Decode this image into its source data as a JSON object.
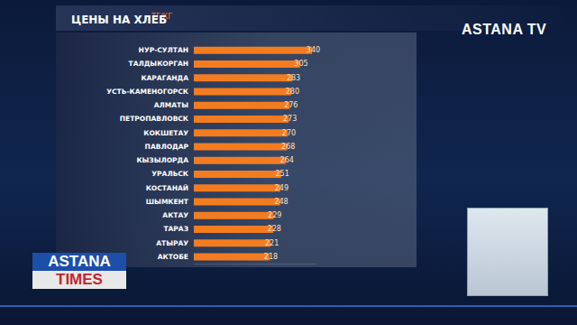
{
  "chart_data": {
    "type": "bar",
    "orientation": "horizontal",
    "title": "ЦЕНЫ НА ХЛЕБ",
    "subtitle": "ТГ/КГ",
    "annotations": [
      "ASTANA TV",
      "ASTANA",
      "TIMES"
    ],
    "categories": [
      "НУР-СУЛТАН",
      "ТАЛДЫКОРГАН",
      "КАРАГАНДА",
      "УСТЬ-КАМЕНОГОРСК",
      "АЛМАТЫ",
      "ПЕТРОПАВЛОВСК",
      "КОКШЕТАУ",
      "ПАВЛОДАР",
      "КЫЗЫЛОРДА",
      "УРАЛЬСК",
      "КОСТАНАЙ",
      "ШЫМКЕНТ",
      "АКТАУ",
      "ТАРАЗ",
      "АТЫРАУ",
      "АКТОБЕ"
    ],
    "values": [
      340,
      305,
      283,
      280,
      276,
      273,
      270,
      268,
      264,
      251,
      249,
      248,
      229,
      228,
      221,
      218
    ],
    "color": "#f47c20",
    "xlim": [
      0,
      350
    ],
    "data_labels": true,
    "tick_labels": "y",
    "grid": false
  }
}
